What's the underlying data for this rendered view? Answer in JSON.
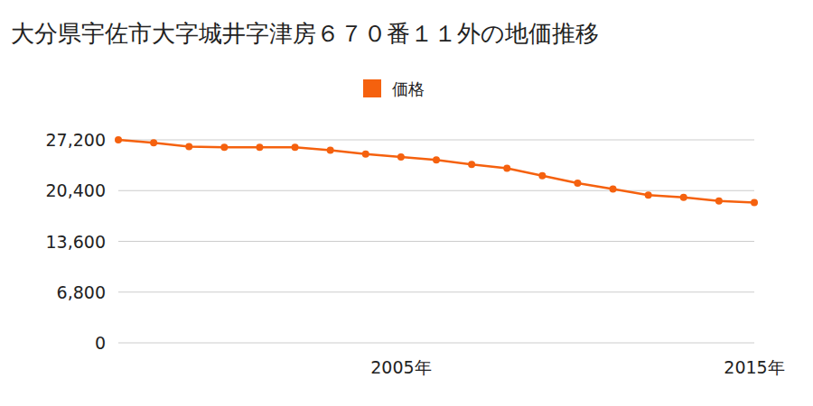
{
  "chart_data": {
    "type": "line",
    "title": "大分県宇佐市大字城井字津房６７０番１１外の地価推移",
    "categories": [
      null,
      null,
      null,
      null,
      null,
      null,
      null,
      null,
      "2005年",
      null,
      null,
      null,
      null,
      null,
      null,
      null,
      null,
      null,
      "2015年"
    ],
    "series": [
      {
        "name": "価格",
        "color": "#f5610e",
        "marker": "circle",
        "values": [
          27200,
          26800,
          26300,
          26200,
          26200,
          26200,
          25800,
          25300,
          24900,
          24500,
          23900,
          23400,
          22400,
          21400,
          20600,
          19800,
          19500,
          19000,
          18800
        ]
      }
    ],
    "ylim": [
      0,
      27200
    ],
    "yticks": [
      0,
      {
        "value": 6800,
        "label": "6,800"
      },
      {
        "value": 13600,
        "label": "13,600"
      },
      {
        "value": 20400,
        "label": "20,400"
      },
      {
        "value": 27200,
        "label": "27,200"
      }
    ],
    "grid": true,
    "legend": "top"
  }
}
